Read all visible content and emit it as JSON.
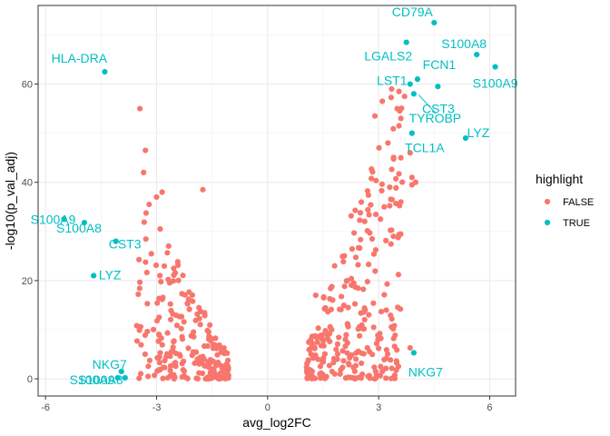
{
  "chart_data": {
    "type": "scatter",
    "xlabel": "avg_log2FC",
    "ylabel": "-log10(p_val_adj)",
    "xlim": [
      -6.2,
      6.7
    ],
    "ylim": [
      -3.5,
      76
    ],
    "xticks": [
      -6,
      -3,
      0,
      3,
      6
    ],
    "xtick_labels": [
      "-6",
      "-3",
      "0",
      "3",
      "6"
    ],
    "yticks": [
      0,
      20,
      40,
      60
    ],
    "ytick_labels": [
      "0",
      "20",
      "40",
      "60"
    ],
    "grid": true,
    "theme": "bw",
    "legend": {
      "title": "highlight",
      "placement": "right",
      "entries": [
        {
          "label": "FALSE",
          "color": "#F8766D"
        },
        {
          "label": "TRUE",
          "color": "#00BFC4"
        }
      ]
    },
    "colors": {
      "false": "#F8766D",
      "true": "#00BFC4"
    },
    "highlighted_points": [
      {
        "label": "CD79A",
        "x": 4.5,
        "y": 72.5
      },
      {
        "label": "S100A8",
        "x": 5.65,
        "y": 66
      },
      {
        "label": "S100A9",
        "x": 6.15,
        "y": 63.5
      },
      {
        "label": "LGALS2",
        "x": 3.75,
        "y": 68.5
      },
      {
        "label": "LST1",
        "x": 3.85,
        "y": 60
      },
      {
        "label": "FCN1",
        "x": 4.05,
        "y": 61
      },
      {
        "label": "CST3",
        "x": 3.95,
        "y": 58
      },
      {
        "label": "TYROBP",
        "x": 4.6,
        "y": 59.5
      },
      {
        "label": "LYZ",
        "x": 5.35,
        "y": 49
      },
      {
        "label": "TCL1A",
        "x": 3.9,
        "y": 50
      },
      {
        "label": "NKG7",
        "x": 3.95,
        "y": 5.3
      },
      {
        "label": "HLA-DRA",
        "x": -4.4,
        "y": 62.5
      },
      {
        "label": "S100A9",
        "x": -5.5,
        "y": 32.5
      },
      {
        "label": "S100A8",
        "x": -4.95,
        "y": 31.8
      },
      {
        "label": "CST3",
        "x": -4.1,
        "y": 28
      },
      {
        "label": "LYZ",
        "x": -4.7,
        "y": 21
      },
      {
        "label": "NKG7",
        "x": -3.95,
        "y": 1.5
      },
      {
        "label": "S100A9",
        "x": -4.05,
        "y": 0.2
      },
      {
        "label": "S100A8",
        "x": -3.85,
        "y": 0.2
      }
    ],
    "background_points": {
      "color": "#F8766D",
      "note_clusters": []
    }
  }
}
